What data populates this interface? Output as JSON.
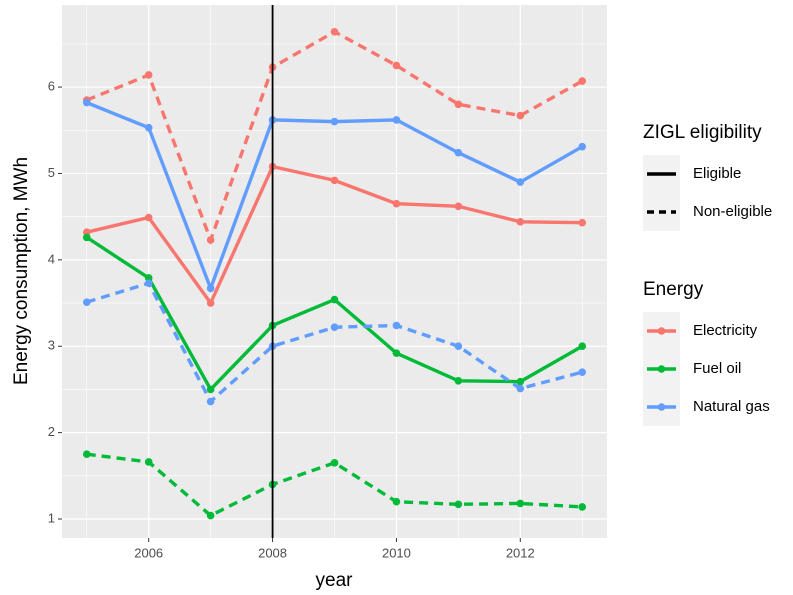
{
  "chart_data": {
    "type": "line",
    "x_label": "year",
    "y_label": "Energy consumption, MWh",
    "x": [
      2005,
      2006,
      2007,
      2008,
      2009,
      2010,
      2011,
      2012,
      2013
    ],
    "xlim": [
      2004.6,
      2013.4
    ],
    "ylim": [
      0.78,
      6.95
    ],
    "xticks": [
      2006,
      2008,
      2010,
      2012
    ],
    "yticks": [
      1,
      2,
      3,
      4,
      5,
      6
    ],
    "grid": true,
    "vline": 2008,
    "linetype_legend": {
      "title": "ZIGL eligibility",
      "labels": [
        "Eligible",
        "Non-eligible"
      ]
    },
    "color_legend_title": "Energy",
    "series": [
      {
        "name": "Electricity",
        "color": "#F8766D",
        "values": [
          [
            4.32,
            4.49,
            3.5,
            5.08,
            4.92,
            4.65,
            4.62,
            4.44,
            4.43
          ],
          [
            5.85,
            6.14,
            4.23,
            6.23,
            6.64,
            6.25,
            5.8,
            5.67,
            6.07
          ]
        ]
      },
      {
        "name": "Fuel oil",
        "color": "#00BA38",
        "values": [
          [
            4.26,
            3.79,
            2.5,
            3.24,
            3.54,
            2.92,
            2.6,
            2.59,
            3.0
          ],
          [
            1.75,
            1.66,
            1.04,
            1.4,
            1.65,
            1.2,
            1.17,
            1.18,
            1.14
          ]
        ]
      },
      {
        "name": "Natural gas",
        "color": "#619CFF",
        "values": [
          [
            5.82,
            5.53,
            3.67,
            5.62,
            5.6,
            5.62,
            5.24,
            4.9,
            5.31
          ],
          [
            3.51,
            3.73,
            2.36,
            3.0,
            3.22,
            3.24,
            3.0,
            2.51,
            2.7
          ]
        ]
      }
    ]
  }
}
